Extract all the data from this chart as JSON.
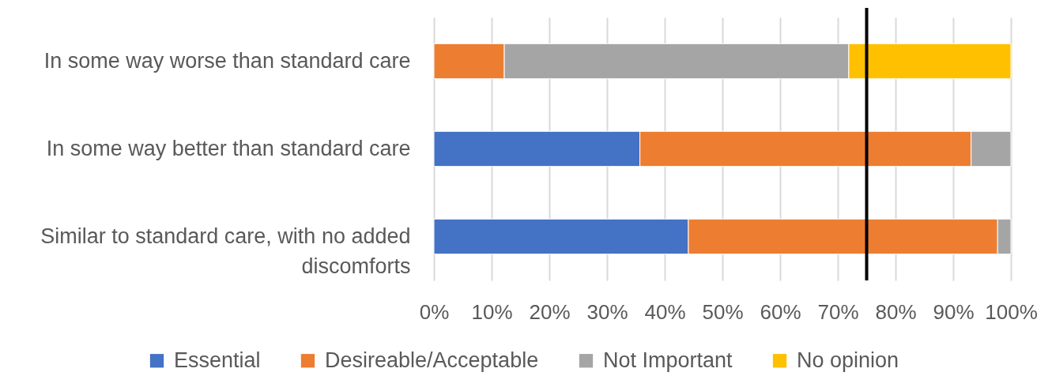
{
  "chart_data": {
    "type": "bar",
    "orientation": "horizontal",
    "stacked": true,
    "categories": [
      "In some way worse than standard care",
      "In some way better than standard care",
      "Similar to standard care, with no added discomforts"
    ],
    "series": [
      {
        "name": "Essential",
        "color": "#4472c4",
        "values": [
          null,
          35.7,
          44.1
        ]
      },
      {
        "name": "Desireable/Acceptable",
        "color": "#ed7d31",
        "values": [
          12.2,
          57.4,
          53.6
        ]
      },
      {
        "name": "Not Important",
        "color": "#a5a5a5",
        "values": [
          59.7,
          6.9,
          2.3
        ]
      },
      {
        "name": "No opinion",
        "color": "#ffc000",
        "values": [
          28.1,
          null,
          null
        ]
      }
    ],
    "xlim": [
      0,
      100
    ],
    "xticks": [
      {
        "value": 0,
        "label": "0%"
      },
      {
        "value": 10,
        "label": "10%"
      },
      {
        "value": 20,
        "label": "20%"
      },
      {
        "value": 30,
        "label": "30%"
      },
      {
        "value": 40,
        "label": "40%"
      },
      {
        "value": 50,
        "label": "50%"
      },
      {
        "value": 60,
        "label": "60%"
      },
      {
        "value": 70,
        "label": "70%"
      },
      {
        "value": 80,
        "label": "80%"
      },
      {
        "value": 90,
        "label": "90%"
      },
      {
        "value": 100,
        "label": "100%"
      }
    ],
    "grid": "x",
    "legend": "bottom",
    "ref_lines": [
      {
        "axis": "x",
        "value": 75,
        "color": "#000000"
      }
    ]
  }
}
